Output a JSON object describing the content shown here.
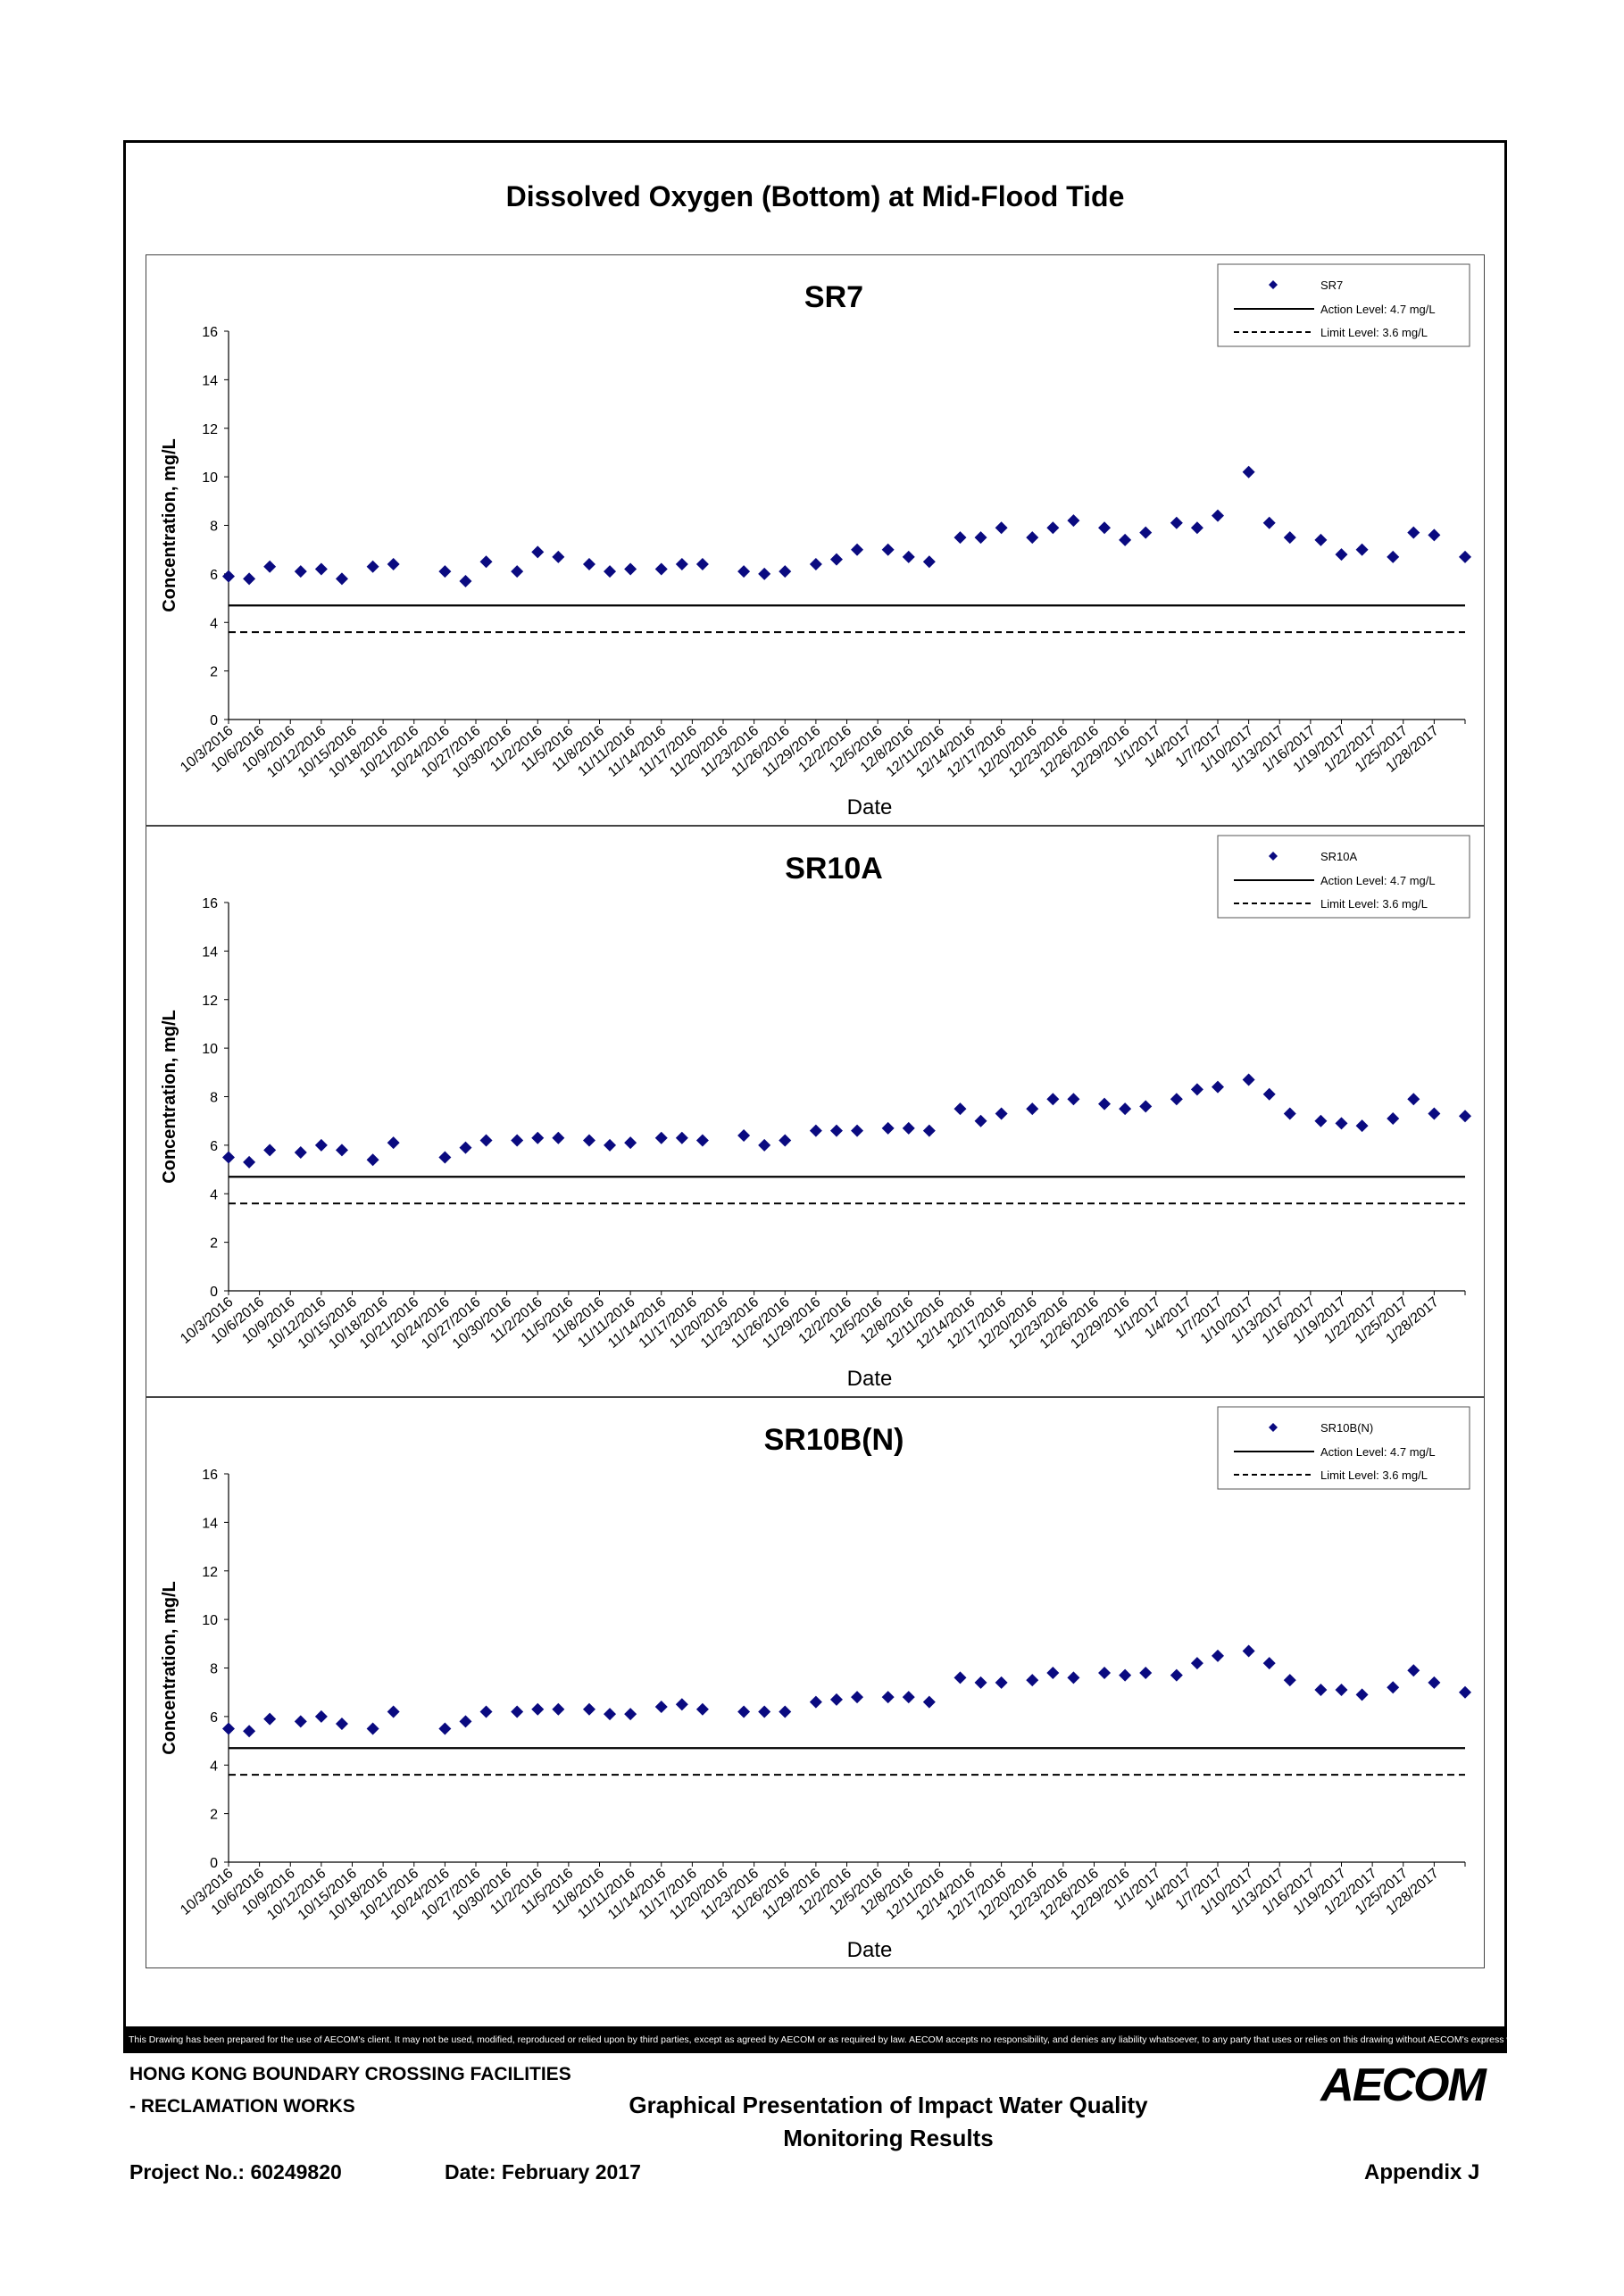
{
  "main_title": "Dissolved Oxygen (Bottom) at Mid-Flood Tide",
  "colors": {
    "marker": "#0A0A80",
    "line": "#000000"
  },
  "axis": {
    "ylabel": "Concentration, mg/L",
    "xlabel": "Date",
    "ylim": [
      0,
      16
    ],
    "yticks": [
      "0",
      "2",
      "4",
      "6",
      "8",
      "10",
      "12",
      "14",
      "16"
    ],
    "xticks": [
      "10/3/2016",
      "10/6/2016",
      "10/9/2016",
      "10/12/2016",
      "10/15/2016",
      "10/18/2016",
      "10/21/2016",
      "10/24/2016",
      "10/27/2016",
      "10/30/2016",
      "11/2/2016",
      "11/5/2016",
      "11/8/2016",
      "11/11/2016",
      "11/14/2016",
      "11/17/2016",
      "11/20/2016",
      "11/23/2016",
      "11/26/2016",
      "11/29/2016",
      "12/2/2016",
      "12/5/2016",
      "12/8/2016",
      "12/11/2016",
      "12/14/2016",
      "12/17/2016",
      "12/20/2016",
      "12/23/2016",
      "12/26/2016",
      "12/29/2016",
      "1/1/2017",
      "1/4/2017",
      "1/7/2017",
      "1/10/2017",
      "1/13/2017",
      "1/16/2017",
      "1/19/2017",
      "1/22/2017",
      "1/25/2017",
      "1/28/2017"
    ],
    "x_range": [
      "10/3/2016",
      "1/31/2017"
    ]
  },
  "chart_data": [
    {
      "type": "scatter",
      "title": "SR7",
      "legend": {
        "series": "SR7",
        "action": "Action Level: 4.7 mg/L",
        "limit": "Limit Level: 3.6 mg/L",
        "position": "top-right"
      },
      "action_level": 4.7,
      "limit_level": 3.6,
      "x": [
        "10/3/2016",
        "10/6/2016",
        "10/9/2016",
        "10/12/2016",
        "10/15/2016",
        "10/18/2016",
        "10/21/2016",
        "10/24/2016",
        "10/27/2016",
        "10/30/2016",
        "11/2/2016",
        "11/5/2016",
        "11/8/2016",
        "11/11/2016",
        "11/14/2016",
        "11/17/2016",
        "11/20/2016",
        "11/23/2016",
        "11/26/2016",
        "11/29/2016",
        "12/2/2016",
        "12/5/2016",
        "12/8/2016",
        "12/11/2016",
        "12/14/2016",
        "12/17/2016",
        "12/20/2016",
        "12/23/2016",
        "12/26/2016",
        "12/29/2016",
        "1/1/2017",
        "1/4/2017",
        "1/7/2017",
        "1/10/2017",
        "1/13/2017",
        "1/16/2017",
        "1/19/2017",
        "1/22/2017",
        "1/25/2017",
        "1/28/2017",
        "1/31/2017"
      ],
      "days": [
        0,
        1,
        3,
        5,
        6,
        7,
        9,
        10,
        14,
        15,
        16,
        18,
        19,
        21,
        22,
        24,
        25,
        26,
        28,
        29,
        31,
        32,
        33,
        35,
        36,
        37,
        39,
        40,
        42,
        43,
        45,
        46,
        47,
        49,
        50,
        52,
        53,
        54,
        56,
        57,
        59,
        60,
        62,
        63,
        64,
        66,
        67,
        68,
        70,
        71,
        72,
        74,
        75,
        77,
        78,
        79,
        81,
        82,
        84,
        85,
        86,
        88,
        89,
        91,
        92,
        93,
        95,
        96,
        98,
        99,
        100,
        102,
        103,
        105,
        106,
        107,
        109,
        110,
        112,
        113,
        114,
        116,
        117,
        119,
        120
      ],
      "values": []
    },
    {
      "type": "scatter",
      "title": "SR10A",
      "legend": {
        "series": "SR10A",
        "action": "Action Level: 4.7 mg/L",
        "limit": "Limit Level: 3.6 mg/L",
        "position": "top-right"
      },
      "action_level": 4.7,
      "limit_level": 3.6,
      "values": []
    },
    {
      "type": "scatter",
      "title": "SR10B(N)",
      "legend": {
        "series": "SR10B(N)",
        "action": "Action Level: 4.7 mg/L",
        "limit": "Limit Level: 3.6 mg/L",
        "position": "top-right"
      },
      "action_level": 4.7,
      "limit_level": 3.6,
      "values": []
    }
  ],
  "samples": {
    "dates": [
      "10/3/2016",
      "10/5/2016",
      "10/7/2016",
      "10/10/2016",
      "10/12/2016",
      "10/14/2016",
      "10/17/2016",
      "10/19/2016",
      "10/24/2016",
      "10/26/2016",
      "10/28/2016",
      "10/31/2016",
      "11/2/2016",
      "11/4/2016",
      "11/7/2016",
      "11/9/2016",
      "11/11/2016",
      "11/14/2016",
      "11/16/2016",
      "11/18/2016",
      "11/22/2016",
      "11/24/2016",
      "11/26/2016",
      "11/29/2016",
      "12/1/2016",
      "12/3/2016",
      "12/6/2016",
      "12/8/2016",
      "12/10/2016",
      "12/13/2016",
      "12/15/2016",
      "12/17/2016",
      "12/20/2016",
      "12/22/2016",
      "12/24/2016",
      "12/27/2016",
      "12/29/2016",
      "12/31/2016",
      "1/3/2017",
      "1/5/2017",
      "1/7/2017",
      "1/10/2017",
      "1/12/2017",
      "1/14/2017",
      "1/17/2017",
      "1/19/2017",
      "1/21/2017",
      "1/24/2017",
      "1/26/2017",
      "1/28/2017",
      "1/31/2017"
    ],
    "SR7": [
      5.9,
      5.8,
      6.3,
      6.1,
      6.2,
      5.8,
      6.3,
      6.4,
      6.1,
      5.7,
      6.5,
      6.1,
      6.9,
      6.7,
      6.4,
      6.1,
      6.2,
      6.2,
      6.4,
      6.4,
      6.1,
      6.0,
      6.1,
      6.4,
      6.6,
      7.0,
      7.0,
      6.7,
      6.5,
      7.5,
      7.5,
      7.9,
      7.5,
      7.9,
      8.2,
      7.9,
      7.4,
      7.7,
      8.1,
      7.9,
      8.4,
      10.2,
      8.1,
      7.5,
      7.4,
      6.8,
      7.0,
      6.7,
      7.7,
      7.6,
      6.7
    ],
    "SR10A": [
      5.5,
      5.3,
      5.8,
      5.7,
      6.0,
      5.8,
      5.4,
      6.1,
      5.5,
      5.9,
      6.2,
      6.2,
      6.3,
      6.3,
      6.2,
      6.0,
      6.1,
      6.3,
      6.3,
      6.2,
      6.4,
      6.0,
      6.2,
      6.6,
      6.6,
      6.6,
      6.7,
      6.7,
      6.6,
      7.5,
      7.0,
      7.3,
      7.5,
      7.9,
      7.9,
      7.7,
      7.5,
      7.6,
      7.9,
      8.3,
      8.4,
      8.7,
      8.1,
      7.3,
      7.0,
      6.9,
      6.8,
      7.1,
      7.9,
      7.3,
      7.2
    ],
    "SR10B(N)": [
      5.5,
      5.4,
      5.9,
      5.8,
      6.0,
      5.7,
      5.5,
      6.2,
      5.5,
      5.8,
      6.2,
      6.2,
      6.3,
      6.3,
      6.3,
      6.1,
      6.1,
      6.4,
      6.5,
      6.3,
      6.2,
      6.2,
      6.2,
      6.6,
      6.7,
      6.8,
      6.8,
      6.8,
      6.6,
      7.6,
      7.4,
      7.4,
      7.5,
      7.8,
      7.6,
      7.8,
      7.7,
      7.8,
      7.7,
      8.2,
      8.5,
      8.7,
      8.2,
      7.5,
      7.1,
      7.1,
      6.9,
      7.2,
      7.9,
      7.4,
      7.0
    ]
  },
  "disclaimer": "This Drawing has been prepared for the use of AECOM's client. It may not be used, modified, reproduced or relied upon by third parties, except as agreed by AECOM or as required by law. AECOM accepts no responsibility, and denies any liability whatsoever, to any party that uses or relies on this drawing without AECOM's express written consent.",
  "footer": {
    "project_line1": "HONG KONG BOUNDARY CROSSING FACILITIES",
    "project_line2": "- RECLAMATION WORKS",
    "title_line1": "Graphical Presentation of Impact Water Quality",
    "title_line2": "Monitoring Results",
    "project_no": "Project No.: 60249820",
    "date": "Date: February 2017",
    "appendix": "Appendix J",
    "logo": "AECOM"
  }
}
